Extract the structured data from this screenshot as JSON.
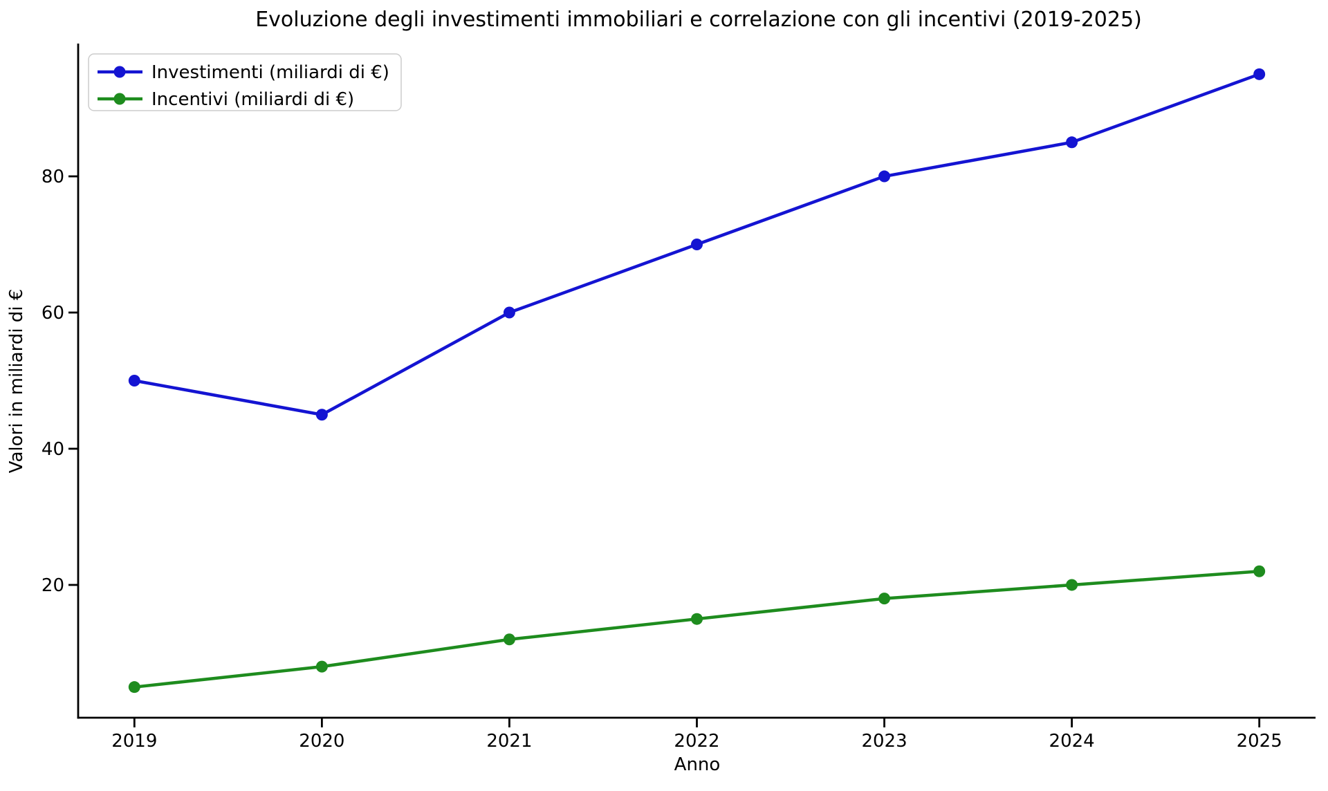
{
  "figure": {
    "background_color": "#ffffff",
    "axis_color": "#000000"
  },
  "chart_data": {
    "type": "line",
    "title": "Evoluzione degli investimenti immobiliari e correlazione con gli incentivi (2019-2025)",
    "xlabel": "Anno",
    "ylabel": "Valori in miliardi di €",
    "x": [
      2019,
      2020,
      2021,
      2022,
      2023,
      2024,
      2025
    ],
    "series": [
      {
        "name": "Investimenti (miliardi di €)",
        "color": "#1414d2",
        "marker": "circle",
        "values": [
          50,
          45,
          60,
          70,
          80,
          85,
          95
        ]
      },
      {
        "name": "Incentivi (miliardi di €)",
        "color": "#1e8c1e",
        "marker": "circle",
        "values": [
          5,
          8,
          12,
          15,
          18,
          20,
          22
        ]
      }
    ],
    "yticks": [
      20,
      40,
      60,
      80
    ],
    "xticks": [
      2019,
      2020,
      2021,
      2022,
      2023,
      2024,
      2025
    ],
    "ylim": [
      0.5,
      99.5
    ],
    "xlim": [
      2018.7,
      2025.3
    ],
    "grid": false,
    "legend_position": "upper left",
    "legend_border_color": "#cccccc",
    "spines": [
      "left",
      "bottom"
    ]
  }
}
